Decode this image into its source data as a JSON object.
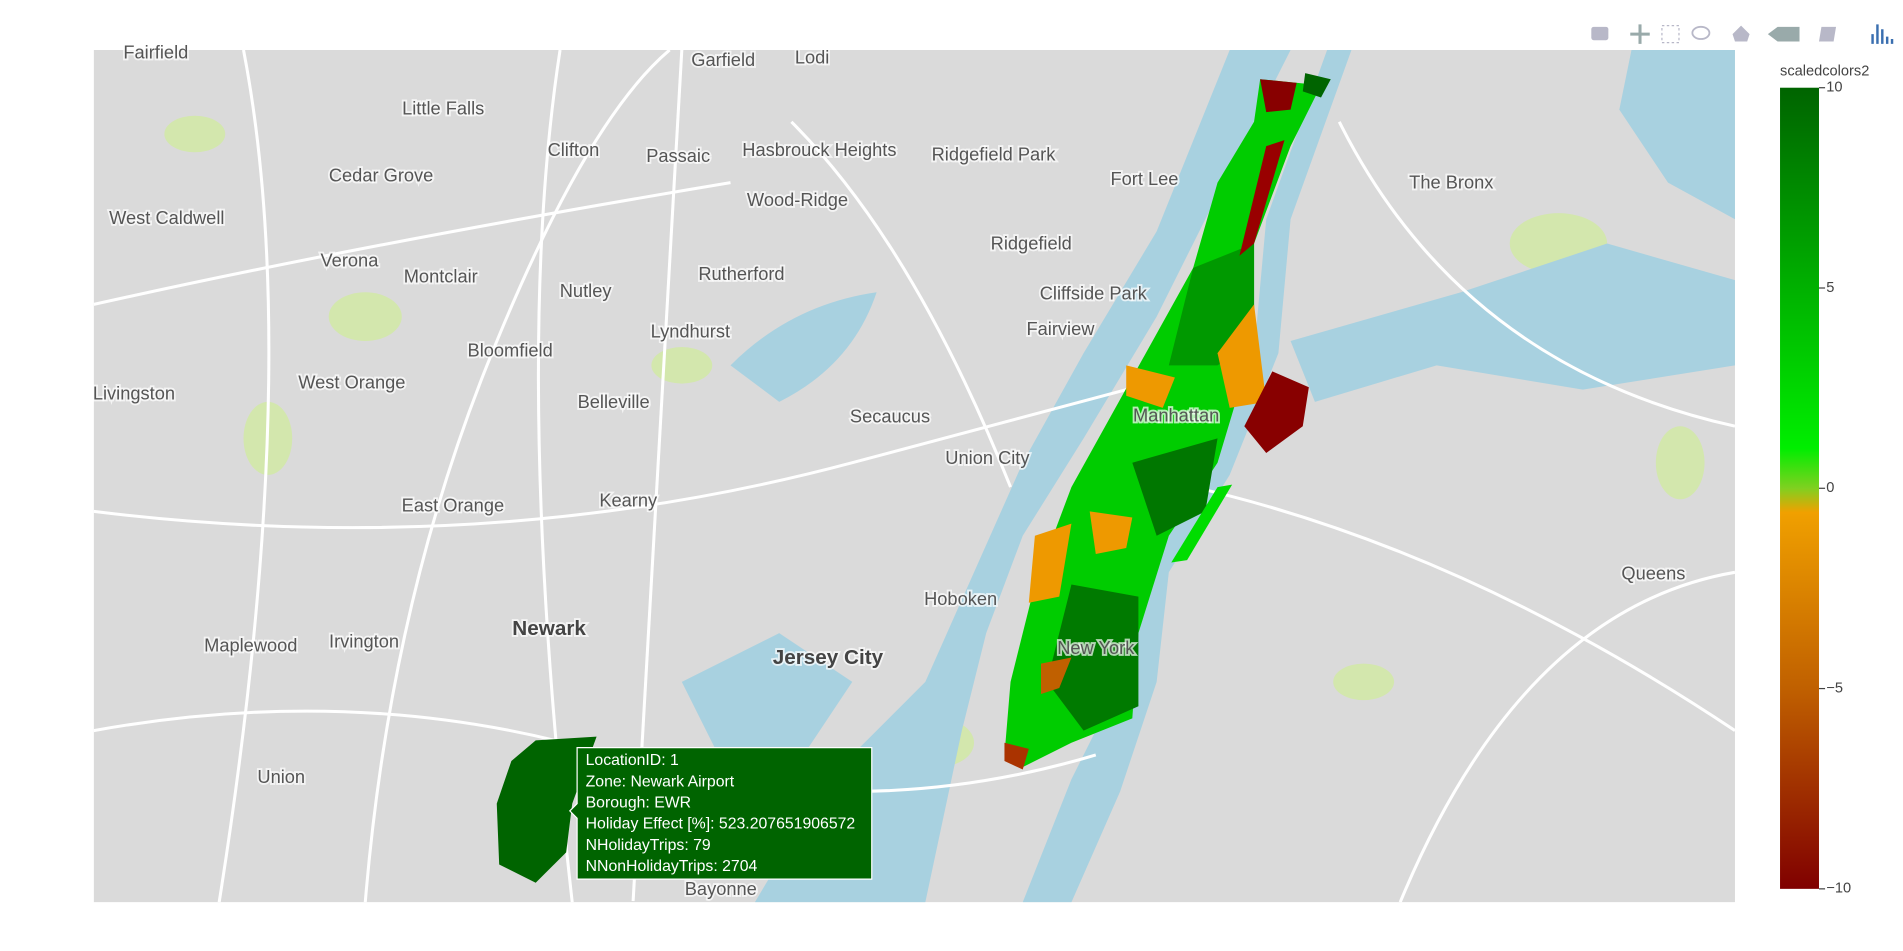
{
  "map": {
    "labels": [
      "Fairfield",
      "Garfield",
      "Lodi",
      "Little Falls",
      "Clifton",
      "Passaic",
      "Hasbrouck Heights",
      "Cedar Grove",
      "West Caldwell",
      "Wood-Ridge",
      "Ridgefield Park",
      "Fort Lee",
      "The Bronx",
      "Ridgefield",
      "Verona",
      "Montclair",
      "Nutley",
      "Rutherford",
      "Cliffside Park",
      "Lyndhurst",
      "Fairview",
      "Bloomfield",
      "Livingston",
      "West Orange",
      "Belleville",
      "Secaucus",
      "Manhattan",
      "Union City",
      "East Orange",
      "Kearny",
      "Queens",
      "Hoboken",
      "Newark",
      "Jersey City",
      "New York",
      "Maplewood",
      "Irvington",
      "Union",
      "Bayonne"
    ]
  },
  "colorbar": {
    "title": "scaledcolors2",
    "ticks": [
      10,
      5,
      0,
      {
        "value": -5,
        "label": "−5"
      },
      {
        "value": -10,
        "label": "−10"
      }
    ],
    "range": [
      -10,
      10
    ]
  },
  "tooltip": {
    "lines": [
      "LocationID: 1",
      "Zone: Newark Airport",
      "Borough: EWR",
      "Holiday Effect [%]: 523.207651906572",
      "NHolidayTrips: 79",
      "NNonHolidayTrips: 2704"
    ]
  }
}
